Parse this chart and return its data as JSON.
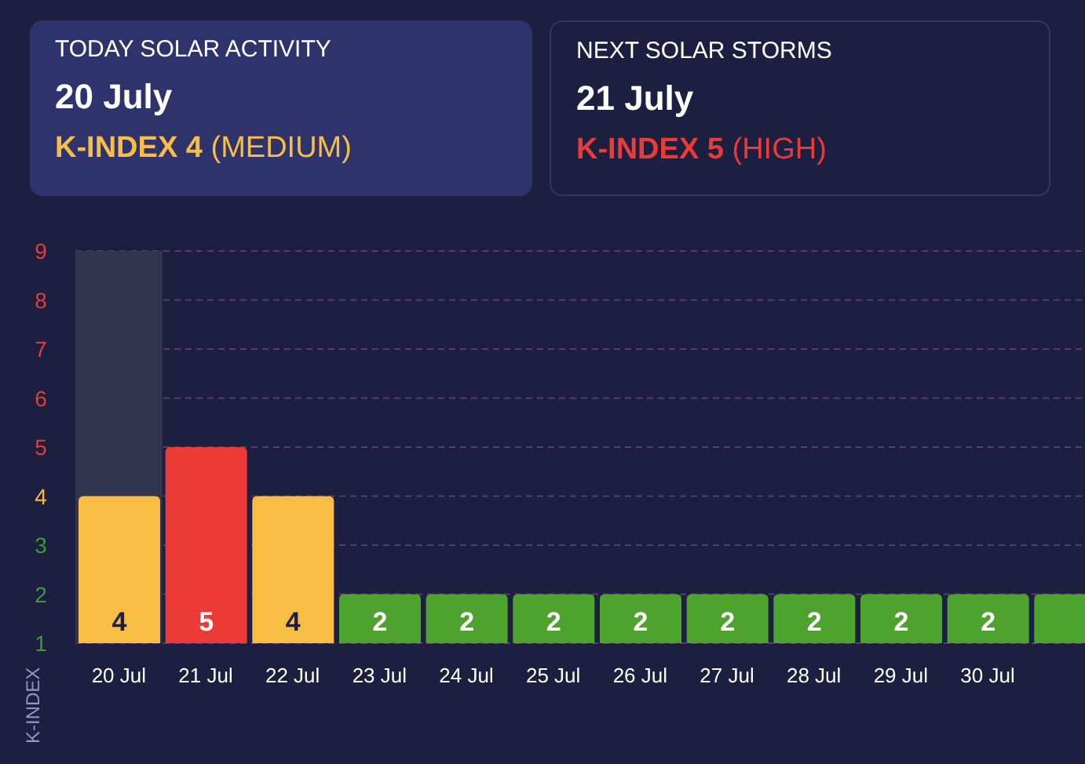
{
  "chart_data": {
    "type": "bar",
    "ylabel": "K-INDEX",
    "annotations": [
      "TODAY SOLAR ACTIVITY",
      "20 July",
      "K-INDEX 4 (MEDIUM)",
      "NEXT SOLAR STORMS",
      "21 July",
      "K-INDEX 5 (HIGH)"
    ],
    "categories": [
      "20 Jul",
      "21 Jul",
      "22 Jul",
      "23 Jul",
      "24 Jul",
      "25 Jul",
      "26 Jul",
      "27 Jul",
      "28 Jul",
      "29 Jul",
      "30 Jul",
      null
    ],
    "values": [
      4,
      5,
      4,
      2,
      2,
      2,
      2,
      2,
      2,
      2,
      2,
      2
    ],
    "colors": [
      "#f7bd45",
      "#ec3a36",
      "#f7bd45",
      "#4ea22e",
      "#4ea22e",
      "#4ea22e",
      "#4ea22e",
      "#4ea22e",
      "#4ea22e",
      "#4ea22e",
      "#4ea22e",
      "#4ea22e"
    ],
    "value_labels": [
      "4",
      "5",
      "4",
      "2",
      "2",
      "2",
      "2",
      "2",
      "2",
      "2",
      "2",
      null
    ],
    "ylim": [
      1,
      9
    ],
    "yticks": [
      1,
      2,
      3,
      4,
      5,
      6,
      7,
      8,
      9
    ],
    "grid": "y",
    "bands": [
      {
        "axis": "x",
        "from": "20 Jul",
        "to": "20 Jul",
        "color": "#30344f"
      }
    ]
  }
}
